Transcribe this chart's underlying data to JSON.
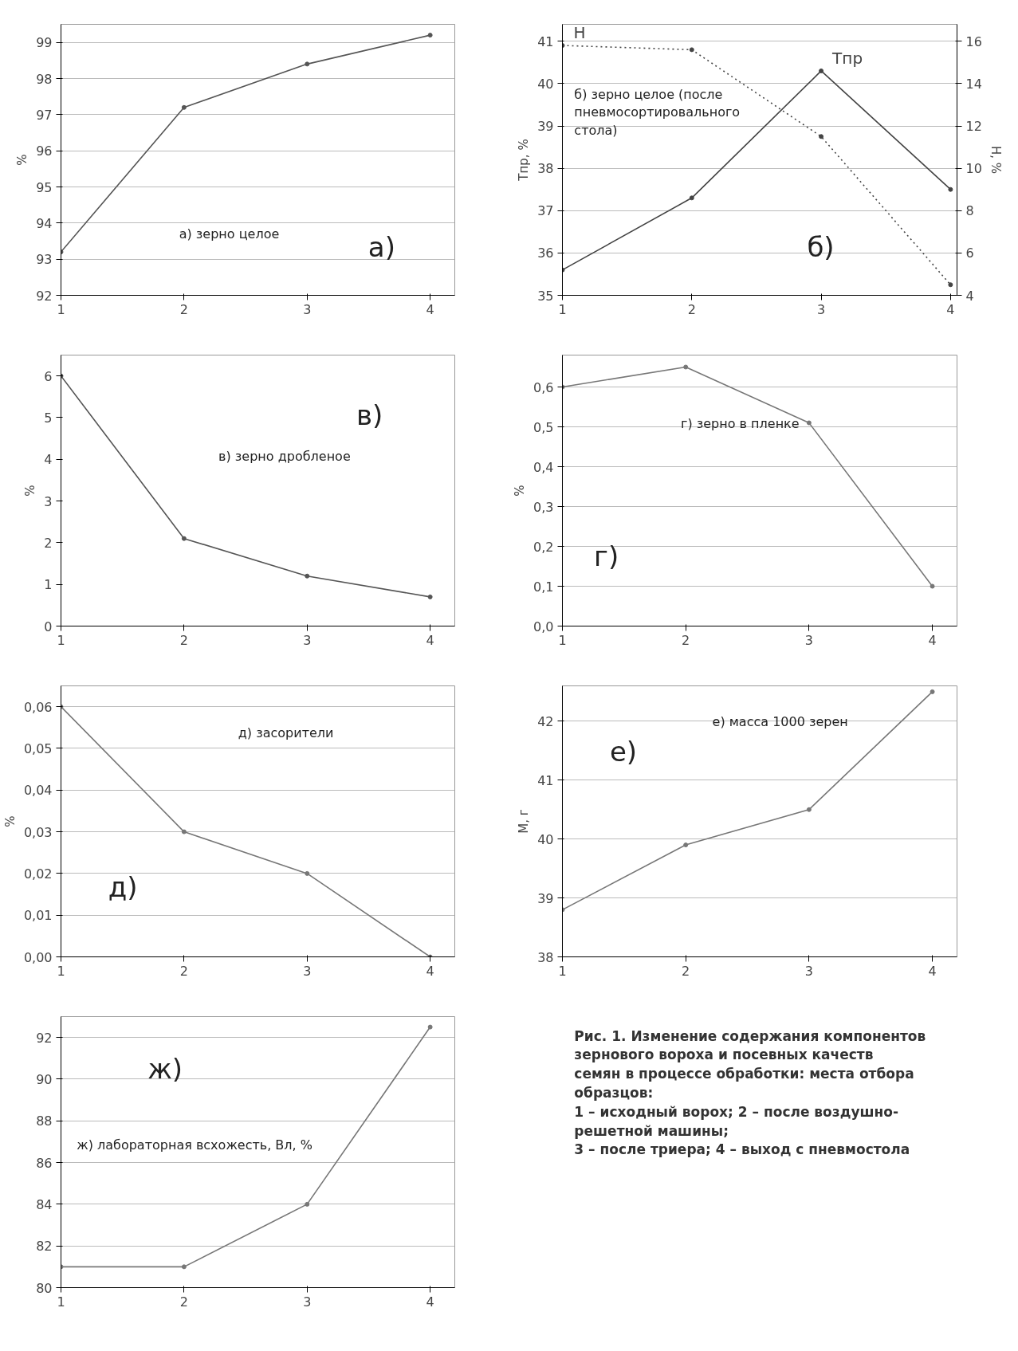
{
  "chart_data": [
    {
      "type": "line",
      "ylabel": "%",
      "x": [
        1,
        2,
        3,
        4
      ],
      "xlim": [
        1,
        4.2
      ],
      "xticks": [
        1,
        2,
        3,
        4
      ],
      "ylim": [
        92,
        99.5
      ],
      "yticks": [
        92,
        93,
        94,
        95,
        96,
        97,
        98,
        99
      ],
      "grid": "y",
      "marker": "circle",
      "annotations": [
        "а) зерно целое",
        "а)"
      ],
      "series": [
        {
          "color": "#555555",
          "values": [
            93.2,
            97.2,
            98.4,
            99.2
          ]
        }
      ]
    },
    {
      "type": "line",
      "ylabel": "Tпр, %",
      "y2label": "H, %",
      "x": [
        1,
        2,
        3,
        4
      ],
      "xlim": [
        1,
        4.05
      ],
      "xticks": [
        1,
        2,
        3,
        4
      ],
      "ylim": [
        35,
        41.4
      ],
      "yticks": [
        35,
        36,
        37,
        38,
        39,
        40,
        41
      ],
      "y2lim": [
        4,
        16.8
      ],
      "y2ticks": [
        4,
        6,
        8,
        10,
        12,
        14,
        16
      ],
      "grid": "y",
      "marker": "circle",
      "annotations": [
        "б) зерно целое (после пневмосортировального стола)",
        "б)"
      ],
      "series": [
        {
          "name": "Tпр",
          "color": "#444444",
          "values": [
            35.6,
            37.3,
            40.3,
            37.5
          ]
        },
        {
          "name": "H",
          "color": "#444444",
          "axis": "y2",
          "line_style": "dotted",
          "values": [
            15.8,
            15.6,
            11.5,
            4.5
          ]
        }
      ]
    },
    {
      "type": "line",
      "ylabel": "%",
      "x": [
        1,
        2,
        3,
        4
      ],
      "xlim": [
        1,
        4.2
      ],
      "xticks": [
        1,
        2,
        3,
        4
      ],
      "ylim": [
        0,
        6.5
      ],
      "yticks": [
        0,
        1,
        2,
        3,
        4,
        5,
        6
      ],
      "grid": false,
      "marker": "circle",
      "annotations": [
        "в) зерно дробленое",
        "в)"
      ],
      "series": [
        {
          "color": "#555555",
          "values": [
            6.0,
            2.1,
            1.2,
            0.7
          ]
        }
      ]
    },
    {
      "type": "line",
      "ylabel": "%",
      "x": [
        1,
        2,
        3,
        4
      ],
      "xlim": [
        1,
        4.2
      ],
      "xticks": [
        1,
        2,
        3,
        4
      ],
      "ylim": [
        0,
        0.68
      ],
      "yticks": [
        {
          "value": 0,
          "label": "0,0"
        },
        {
          "value": 0.1,
          "label": "0,1"
        },
        {
          "value": 0.2,
          "label": "0,2"
        },
        {
          "value": 0.3,
          "label": "0,3"
        },
        {
          "value": 0.4,
          "label": "0,4"
        },
        {
          "value": 0.5,
          "label": "0,5"
        },
        {
          "value": 0.6,
          "label": "0,6"
        }
      ],
      "grid": "y",
      "marker": "circle",
      "annotations": [
        "г) зерно в пленке",
        "г)"
      ],
      "series": [
        {
          "color": "#777777",
          "values": [
            0.6,
            0.65,
            0.51,
            0.1
          ]
        }
      ]
    },
    {
      "type": "line",
      "ylabel": "%",
      "x": [
        1,
        2,
        3,
        4
      ],
      "xlim": [
        1,
        4.2
      ],
      "xticks": [
        1,
        2,
        3,
        4
      ],
      "ylim": [
        0,
        0.065
      ],
      "yticks": [
        {
          "value": 0,
          "label": "0,00"
        },
        {
          "value": 0.01,
          "label": "0,01"
        },
        {
          "value": 0.02,
          "label": "0,02"
        },
        {
          "value": 0.03,
          "label": "0,03"
        },
        {
          "value": 0.04,
          "label": "0,04"
        },
        {
          "value": 0.05,
          "label": "0,05"
        },
        {
          "value": 0.06,
          "label": "0,06"
        }
      ],
      "grid": "y",
      "marker": "circle",
      "annotations": [
        "д) засорители",
        "д)"
      ],
      "series": [
        {
          "color": "#777777",
          "values": [
            0.06,
            0.03,
            0.02,
            0.0
          ]
        }
      ]
    },
    {
      "type": "line",
      "ylabel": "М, г",
      "x": [
        1,
        2,
        3,
        4
      ],
      "xlim": [
        1,
        4.2
      ],
      "xticks": [
        1,
        2,
        3,
        4
      ],
      "ylim": [
        38,
        42.6
      ],
      "yticks": [
        38,
        39,
        40,
        41,
        42
      ],
      "grid": "y",
      "marker": "circle",
      "annotations": [
        "е) масса 1000 зерен",
        "е)"
      ],
      "series": [
        {
          "color": "#777777",
          "values": [
            38.8,
            39.9,
            40.5,
            42.5
          ]
        }
      ]
    },
    {
      "type": "line",
      "x": [
        1,
        2,
        3,
        4
      ],
      "xlim": [
        1,
        4.2
      ],
      "xticks": [
        1,
        2,
        3,
        4
      ],
      "ylim": [
        80,
        93
      ],
      "yticks": [
        80,
        82,
        84,
        86,
        88,
        90,
        92
      ],
      "grid": "y",
      "marker": "circle",
      "annotations": [
        "ж) лабораторная всхожесть, Вл, %",
        "ж)"
      ],
      "series": [
        {
          "color": "#777777",
          "values": [
            81,
            81,
            84,
            92.5
          ]
        }
      ]
    },
    {
      "type": "other",
      "annotations": [
        "Рис. 1. Изменение содержания компонентов",
        "зернового вороха и посевных качеств",
        "семян в процессе обработки: места отбора",
        "образцов:",
        "1 – исходный ворох; 2 – после воздушно-",
        "решетной машины;",
        "3 – после триера; 4 – выход с пневмостола"
      ]
    }
  ]
}
